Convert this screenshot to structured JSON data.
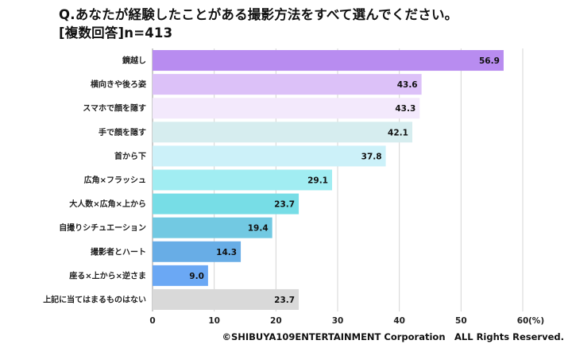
{
  "chart_data": {
    "type": "bar",
    "orientation": "horizontal",
    "title": "Q.あなたが経験したことがある撮影方法をすべて選んでください。",
    "subtitle": "[複数回答]n=413",
    "unit": "(%)",
    "xlim": [
      0,
      60
    ],
    "ticks": [
      0,
      10,
      20,
      30,
      40,
      50,
      60
    ],
    "grid": true,
    "categories": [
      "鏡越し",
      "横向きや後ろ姿",
      "スマホで顔を隠す",
      "手で顔を隠す",
      "首から下",
      "広角×フラッシュ",
      "大人数×広角×上から",
      "自撮りシチュエーション",
      "撮影者とハート",
      "座る×上から×逆さま",
      "上記に当てはまるものはない"
    ],
    "values": [
      56.9,
      43.6,
      43.3,
      42.1,
      37.8,
      29.1,
      23.7,
      19.4,
      14.3,
      9.0,
      23.7
    ],
    "value_labels": [
      "56.9",
      "43.6",
      "43.3",
      "42.1",
      "37.8",
      "29.1",
      "23.7",
      "19.4",
      "14.3",
      "9.0",
      "23.7"
    ],
    "colors": [
      "#b88cf0",
      "#dcc1f8",
      "#f3e9fc",
      "#d6edef",
      "#ccf1f9",
      "#a1edf2",
      "#77dde6",
      "#72c9e2",
      "#68ade6",
      "#6ba8f4",
      "#d9d9d9"
    ]
  },
  "copyright": "©SHIBUYA109ENTERTAINMENT Corporation　ALL Rights Reserved."
}
